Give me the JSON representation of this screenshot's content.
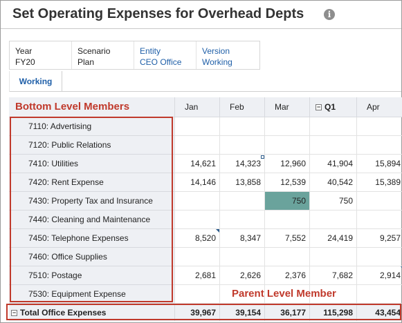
{
  "title": "Set Operating Expenses for Overhead Depts",
  "pov": [
    {
      "label": "Year",
      "value": "FY20",
      "link": false
    },
    {
      "label": "Scenario",
      "value": "Plan",
      "link": false
    },
    {
      "label": "Entity",
      "value": "CEO Office",
      "link": true
    },
    {
      "label": "Version",
      "value": "Working",
      "link": true
    }
  ],
  "tabs": [
    {
      "label": "Working"
    }
  ],
  "annotations": {
    "bottom_level": "Bottom Level Members",
    "parent_level": "Parent Level Member"
  },
  "columns": [
    "Jan",
    "Feb",
    "Mar",
    "Q1",
    "Apr"
  ],
  "rows": [
    {
      "label": "7110: Advertising",
      "values": [
        "",
        "",
        "",
        "",
        ""
      ]
    },
    {
      "label": "7120: Public Relations",
      "values": [
        "",
        "",
        "",
        "",
        ""
      ]
    },
    {
      "label": "7410: Utilities",
      "values": [
        "14,621",
        "14,323",
        "12,960",
        "41,904",
        "15,894"
      ]
    },
    {
      "label": "7420: Rent Expense",
      "values": [
        "14,146",
        "13,858",
        "12,539",
        "40,542",
        "15,389"
      ]
    },
    {
      "label": "7430: Property Tax and Insurance",
      "values": [
        "",
        "",
        "750",
        "750",
        ""
      ]
    },
    {
      "label": "7440: Cleaning and Maintenance",
      "values": [
        "",
        "",
        "",
        "",
        ""
      ]
    },
    {
      "label": "7450: Telephone Expenses",
      "values": [
        "8,520",
        "8,347",
        "7,552",
        "24,419",
        "9,257"
      ]
    },
    {
      "label": "7460: Office Supplies",
      "values": [
        "",
        "",
        "",
        "",
        ""
      ]
    },
    {
      "label": "7510: Postage",
      "values": [
        "2,681",
        "2,626",
        "2,376",
        "7,682",
        "2,914"
      ]
    },
    {
      "label": "7530: Equipment Expense",
      "values": [
        "",
        "",
        "",
        "",
        ""
      ]
    }
  ],
  "total": {
    "label": "Total Office Expenses",
    "values": [
      "39,967",
      "39,154",
      "36,177",
      "115,298",
      "43,454"
    ]
  }
}
